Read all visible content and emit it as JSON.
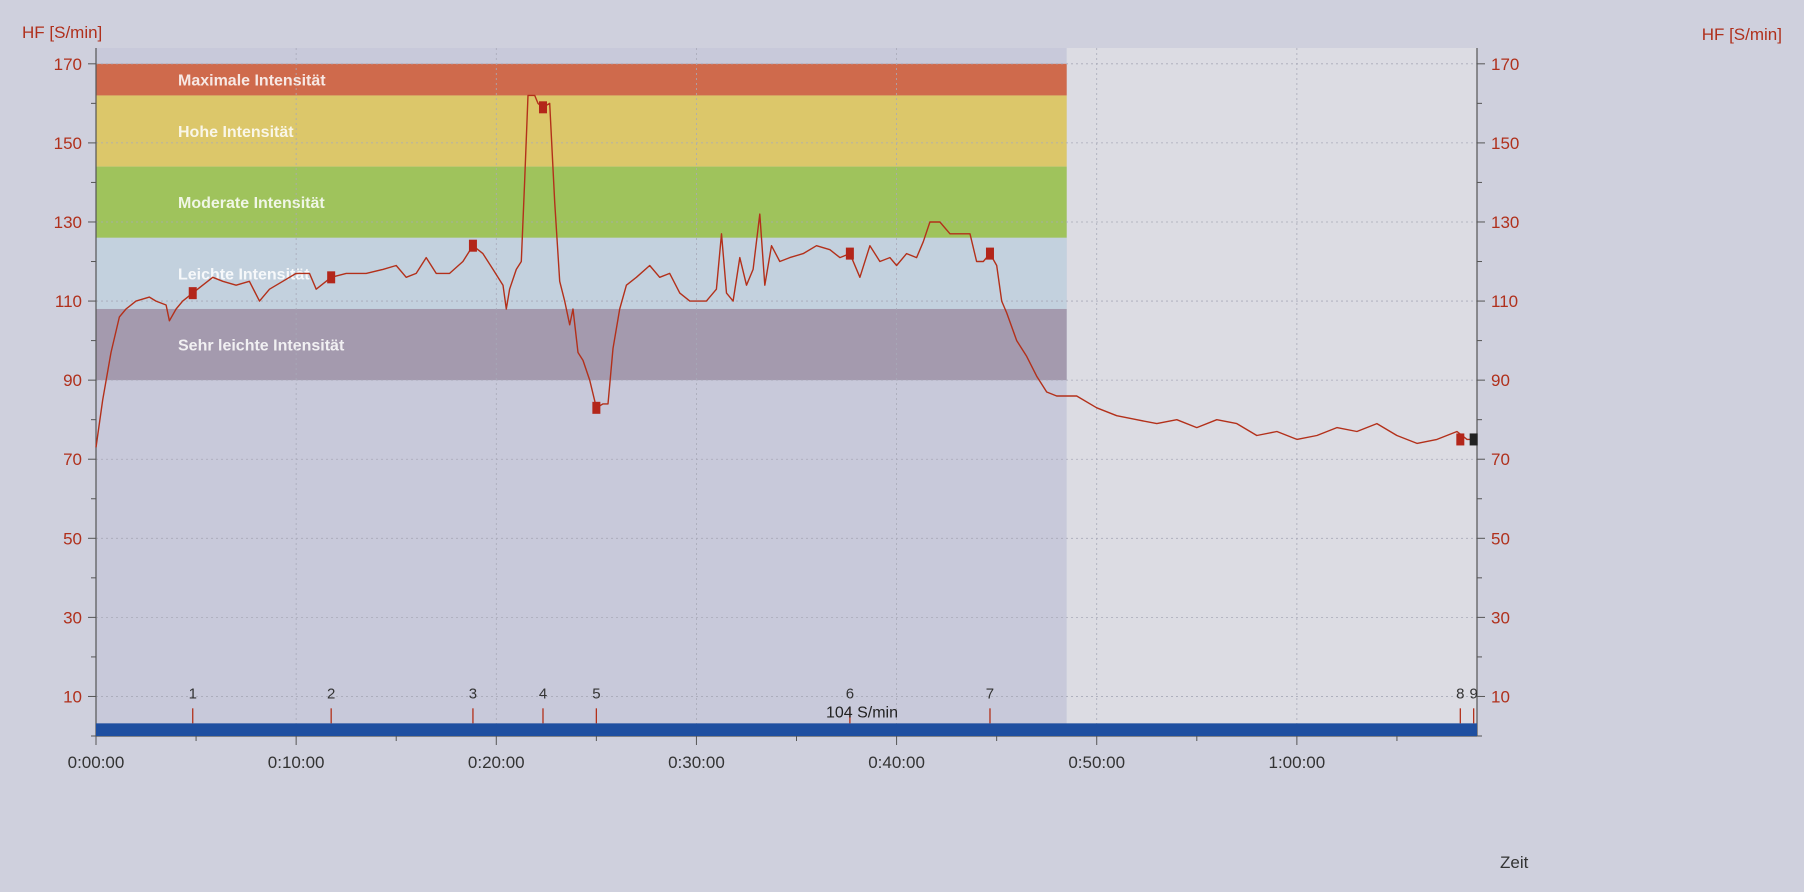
{
  "colors": {
    "paper": "#cfd0dd",
    "plot_bg": "#c8c9da",
    "plot_right": "#dcdce3",
    "axis_text": "#b0301c",
    "hr_line": "#b3301a",
    "marker": "#b3261a",
    "zone_max": "#cf6a4c",
    "zone_high": "#dcc76a",
    "zone_moderate": "#9fc35c",
    "zone_light": "#c3d1de",
    "zone_very_light": "#a49aae",
    "baseline_bar": "#1f4fa0",
    "grid": "#a8a9b8"
  },
  "chart_data": {
    "type": "line",
    "ylabel_left": "HF [S/min]",
    "ylabel_right": "HF [S/min]",
    "xlabel": "Zeit",
    "ylim": [
      0,
      174
    ],
    "xlim_seconds": [
      0,
      4140
    ],
    "y_ticks": [
      10,
      30,
      50,
      70,
      90,
      110,
      130,
      150,
      170
    ],
    "x_ticks": [
      "0:00:00",
      "0:10:00",
      "0:20:00",
      "0:30:00",
      "0:40:00",
      "0:50:00",
      "1:00:00"
    ],
    "zones": [
      {
        "name": "Maximale Intensität",
        "from": 162,
        "to": 170,
        "color_key": "zone_max"
      },
      {
        "name": "Hohe Intensität",
        "from": 144,
        "to": 162,
        "color_key": "zone_high"
      },
      {
        "name": "Moderate Intensität",
        "from": 126,
        "to": 144,
        "color_key": "zone_moderate"
      },
      {
        "name": "Leichte Intensität",
        "from": 108,
        "to": 126,
        "color_key": "zone_light"
      },
      {
        "name": "Sehr leichte Intensität",
        "from": 90,
        "to": 108,
        "color_key": "zone_very_light"
      }
    ],
    "zones_end_time": "0:48:30",
    "average_label": "104 S/min",
    "laps": [
      {
        "label": "1",
        "time": "0:04:50",
        "hr": 112
      },
      {
        "label": "2",
        "time": "0:11:45",
        "hr": 116
      },
      {
        "label": "3",
        "time": "0:18:50",
        "hr": 124
      },
      {
        "label": "4",
        "time": "0:22:20",
        "hr": 159
      },
      {
        "label": "5",
        "time": "0:25:00",
        "hr": 83
      },
      {
        "label": "6",
        "time": "0:37:40",
        "hr": 122
      },
      {
        "label": "7",
        "time": "0:44:40",
        "hr": 122
      },
      {
        "label": "8",
        "time": "1:08:10",
        "hr": 75
      },
      {
        "label": "9",
        "time": "1:08:50",
        "hr": 75
      }
    ],
    "series": [
      {
        "values": [
          [
            "0:00:00",
            73
          ],
          [
            "0:00:20",
            85
          ],
          [
            "0:00:45",
            97
          ],
          [
            "0:01:10",
            106
          ],
          [
            "0:01:30",
            108
          ],
          [
            "0:02:00",
            110
          ],
          [
            "0:02:40",
            111
          ],
          [
            "0:03:00",
            110
          ],
          [
            "0:03:30",
            109
          ],
          [
            "0:03:40",
            105
          ],
          [
            "0:04:00",
            108
          ],
          [
            "0:04:20",
            110
          ],
          [
            "0:04:50",
            112
          ],
          [
            "0:05:20",
            114
          ],
          [
            "0:05:50",
            116
          ],
          [
            "0:06:20",
            115
          ],
          [
            "0:07:00",
            114
          ],
          [
            "0:07:40",
            115
          ],
          [
            "0:08:10",
            110
          ],
          [
            "0:08:40",
            113
          ],
          [
            "0:09:20",
            115
          ],
          [
            "0:10:00",
            117
          ],
          [
            "0:10:40",
            117
          ],
          [
            "0:11:00",
            113
          ],
          [
            "0:11:45",
            116
          ],
          [
            "0:12:30",
            117
          ],
          [
            "0:13:30",
            117
          ],
          [
            "0:14:20",
            118
          ],
          [
            "0:15:00",
            119
          ],
          [
            "0:15:30",
            116
          ],
          [
            "0:16:00",
            117
          ],
          [
            "0:16:30",
            121
          ],
          [
            "0:17:00",
            117
          ],
          [
            "0:17:40",
            117
          ],
          [
            "0:18:20",
            120
          ],
          [
            "0:18:50",
            124
          ],
          [
            "0:19:20",
            122
          ],
          [
            "0:19:50",
            118
          ],
          [
            "0:20:20",
            114
          ],
          [
            "0:20:30",
            108
          ],
          [
            "0:20:40",
            113
          ],
          [
            "0:21:00",
            118
          ],
          [
            "0:21:15",
            120
          ],
          [
            "0:21:25",
            140
          ],
          [
            "0:21:35",
            162
          ],
          [
            "0:21:55",
            162
          ],
          [
            "0:22:05",
            160
          ],
          [
            "0:22:20",
            159
          ],
          [
            "0:22:40",
            160
          ],
          [
            "0:22:55",
            135
          ],
          [
            "0:23:10",
            115
          ],
          [
            "0:23:25",
            110
          ],
          [
            "0:23:40",
            104
          ],
          [
            "0:23:50",
            108
          ],
          [
            "0:24:05",
            97
          ],
          [
            "0:24:20",
            95
          ],
          [
            "0:24:40",
            90
          ],
          [
            "0:25:00",
            83
          ],
          [
            "0:25:20",
            84
          ],
          [
            "0:25:35",
            84
          ],
          [
            "0:25:50",
            98
          ],
          [
            "0:26:10",
            108
          ],
          [
            "0:26:30",
            114
          ],
          [
            "0:27:00",
            116
          ],
          [
            "0:27:40",
            119
          ],
          [
            "0:28:10",
            116
          ],
          [
            "0:28:40",
            117
          ],
          [
            "0:29:10",
            112
          ],
          [
            "0:29:40",
            110
          ],
          [
            "0:30:00",
            110
          ],
          [
            "0:30:30",
            110
          ],
          [
            "0:31:00",
            113
          ],
          [
            "0:31:15",
            127
          ],
          [
            "0:31:30",
            112
          ],
          [
            "0:31:50",
            110
          ],
          [
            "0:32:10",
            121
          ],
          [
            "0:32:30",
            114
          ],
          [
            "0:32:50",
            118
          ],
          [
            "0:33:10",
            132
          ],
          [
            "0:33:25",
            114
          ],
          [
            "0:33:45",
            124
          ],
          [
            "0:34:10",
            120
          ],
          [
            "0:34:40",
            121
          ],
          [
            "0:35:20",
            122
          ],
          [
            "0:36:00",
            124
          ],
          [
            "0:36:40",
            123
          ],
          [
            "0:37:10",
            121
          ],
          [
            "0:37:40",
            122
          ],
          [
            "0:38:10",
            116
          ],
          [
            "0:38:40",
            124
          ],
          [
            "0:39:10",
            120
          ],
          [
            "0:39:40",
            121
          ],
          [
            "0:40:00",
            119
          ],
          [
            "0:40:30",
            122
          ],
          [
            "0:41:00",
            121
          ],
          [
            "0:41:20",
            125
          ],
          [
            "0:41:40",
            130
          ],
          [
            "0:42:10",
            130
          ],
          [
            "0:42:40",
            127
          ],
          [
            "0:43:10",
            127
          ],
          [
            "0:43:40",
            127
          ],
          [
            "0:44:00",
            120
          ],
          [
            "0:44:20",
            120
          ],
          [
            "0:44:40",
            122
          ],
          [
            "0:45:00",
            119
          ],
          [
            "0:45:15",
            110
          ],
          [
            "0:45:30",
            107
          ],
          [
            "0:46:00",
            100
          ],
          [
            "0:46:30",
            96
          ],
          [
            "0:47:00",
            91
          ],
          [
            "0:47:30",
            87
          ],
          [
            "0:48:00",
            86
          ],
          [
            "0:48:30",
            86
          ],
          [
            "0:49:00",
            86
          ],
          [
            "0:50:00",
            83
          ],
          [
            "0:51:00",
            81
          ],
          [
            "0:52:00",
            80
          ],
          [
            "0:53:00",
            79
          ],
          [
            "0:54:00",
            80
          ],
          [
            "0:55:00",
            78
          ],
          [
            "0:56:00",
            80
          ],
          [
            "0:57:00",
            79
          ],
          [
            "0:58:00",
            76
          ],
          [
            "0:59:00",
            77
          ],
          [
            "1:00:00",
            75
          ],
          [
            "1:01:00",
            76
          ],
          [
            "1:02:00",
            78
          ],
          [
            "1:03:00",
            77
          ],
          [
            "1:04:00",
            79
          ],
          [
            "1:05:00",
            76
          ],
          [
            "1:06:00",
            74
          ],
          [
            "1:07:00",
            75
          ],
          [
            "1:08:00",
            77
          ],
          [
            "1:08:30",
            75
          ],
          [
            "1:09:00",
            75
          ]
        ]
      }
    ]
  }
}
